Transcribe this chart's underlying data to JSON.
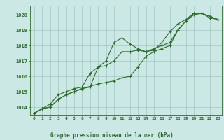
{
  "title": "Graphe pression niveau de la mer (hPa)",
  "bg_color": "#cce8e4",
  "grid_color": "#a0c8c4",
  "line_color": "#2d6a2d",
  "marker_color": "#2d6a2d",
  "xlim": [
    -0.5,
    23.5
  ],
  "ylim": [
    1013.5,
    1020.6
  ],
  "yticks": [
    1014,
    1015,
    1016,
    1017,
    1018,
    1019,
    1020
  ],
  "xticks": [
    0,
    1,
    2,
    3,
    4,
    5,
    6,
    7,
    8,
    9,
    10,
    11,
    12,
    13,
    14,
    15,
    16,
    17,
    18,
    19,
    20,
    21,
    22,
    23
  ],
  "series1_x": [
    0,
    1,
    2,
    3,
    4,
    5,
    6,
    7,
    8,
    9,
    10,
    11,
    12,
    13,
    14,
    15,
    16,
    17,
    18,
    19,
    20,
    21,
    22,
    23
  ],
  "series1_y": [
    1013.6,
    1013.9,
    1014.0,
    1014.5,
    1014.8,
    1015.0,
    1015.2,
    1015.3,
    1016.6,
    1017.0,
    1018.2,
    1018.5,
    1018.1,
    1017.8,
    1017.6,
    1017.8,
    1018.0,
    1018.2,
    1019.0,
    1019.6,
    1020.1,
    1020.1,
    1019.9,
    1019.7
  ],
  "series2_x": [
    0,
    1,
    2,
    3,
    4,
    5,
    6,
    7,
    8,
    9,
    10,
    11,
    12,
    13,
    14,
    15,
    16,
    17,
    18,
    19,
    20,
    21,
    22,
    23
  ],
  "series2_y": [
    1013.6,
    1013.9,
    1014.2,
    1014.8,
    1015.0,
    1015.2,
    1015.3,
    1016.2,
    1016.6,
    1016.7,
    1017.0,
    1017.6,
    1017.6,
    1017.7,
    1017.6,
    1017.7,
    1018.2,
    1018.9,
    1019.4,
    1019.7,
    1020.1,
    1020.1,
    1019.8,
    1019.7
  ],
  "series3_x": [
    0,
    1,
    2,
    3,
    4,
    5,
    6,
    7,
    8,
    9,
    10,
    11,
    12,
    13,
    14,
    15,
    16,
    17,
    18,
    19,
    20,
    21,
    22,
    23
  ],
  "series3_y": [
    1013.6,
    1013.9,
    1014.0,
    1014.5,
    1014.8,
    1015.0,
    1015.2,
    1015.35,
    1015.5,
    1015.6,
    1015.7,
    1015.9,
    1016.0,
    1016.6,
    1017.3,
    1017.6,
    1017.8,
    1018.0,
    1019.0,
    1019.6,
    1020.0,
    1020.1,
    1019.9,
    1019.7
  ]
}
